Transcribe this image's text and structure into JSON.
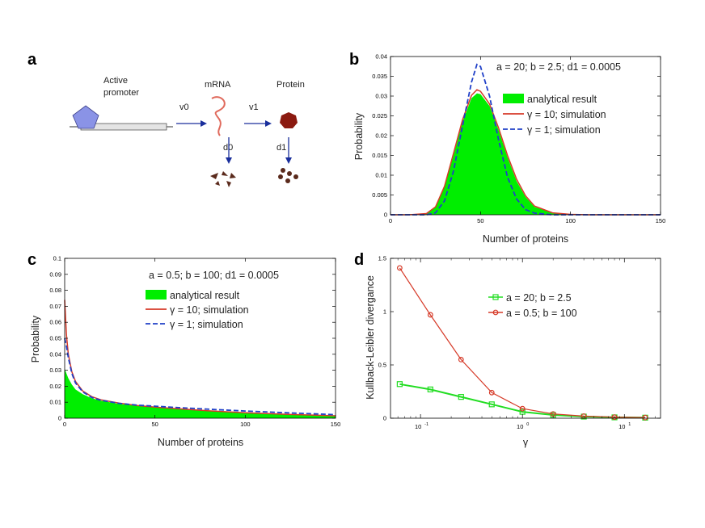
{
  "panel_labels": {
    "a": "a",
    "b": "b",
    "c": "c",
    "d": "d"
  },
  "schematic": {
    "promoter_label_line1": "Active",
    "promoter_label_line2": "promoter",
    "mrna_label": "mRNA",
    "protein_label": "Protein",
    "v0": "v0",
    "v1": "v1",
    "d0": "d0",
    "d1": "d1",
    "colors": {
      "promoter": "#8a93e6",
      "mrna": "#e06a5c",
      "protein": "#8b1a10",
      "arrow": "#1a2f9c",
      "debris": "#5a2a1c"
    }
  },
  "chart_data": [
    {
      "id": "b",
      "type": "area",
      "annotation": "a = 20; b = 2.5;  d1 = 0.0005",
      "xlabel": "Number of proteins",
      "ylabel": "Probability",
      "xlim": [
        0,
        150
      ],
      "ylim": [
        0,
        0.04
      ],
      "xticks": [
        0,
        50,
        100,
        150
      ],
      "yticks": [
        "0",
        "0.005",
        "0.01",
        "0.015",
        "0.02",
        "0.025",
        "0.03",
        "0.035",
        "0.04"
      ],
      "x": [
        0,
        10,
        20,
        25,
        30,
        35,
        40,
        45,
        48,
        50,
        55,
        60,
        65,
        70,
        75,
        80,
        90,
        100,
        110,
        120,
        150
      ],
      "series": [
        {
          "name": "analytical result",
          "style": "fill",
          "color": "#00ee00",
          "values": [
            0,
            0,
            0.0003,
            0.002,
            0.007,
            0.015,
            0.0235,
            0.0295,
            0.0307,
            0.0305,
            0.0275,
            0.0215,
            0.0145,
            0.0085,
            0.0045,
            0.002,
            0.0005,
            0.0001,
            0,
            0,
            0
          ]
        },
        {
          "name": "γ = 10; simulation",
          "style": "solid",
          "color": "#d63a28",
          "values": [
            0,
            0,
            0.0003,
            0.002,
            0.0072,
            0.0155,
            0.024,
            0.0302,
            0.0316,
            0.0312,
            0.028,
            0.022,
            0.015,
            0.009,
            0.0048,
            0.0022,
            0.0005,
            0.0001,
            0,
            0,
            0
          ]
        },
        {
          "name": "γ = 1; simulation",
          "style": "dashed",
          "color": "#2040c8",
          "values": [
            0,
            0,
            0,
            0.0005,
            0.0035,
            0.011,
            0.0225,
            0.0335,
            0.038,
            0.0375,
            0.03,
            0.019,
            0.0095,
            0.004,
            0.0013,
            0.0004,
            0,
            0,
            0,
            0,
            0
          ]
        }
      ]
    },
    {
      "id": "c",
      "type": "area",
      "annotation": "a = 0.5; b = 100;  d1 = 0.0005",
      "xlabel": "Number of proteins",
      "ylabel": "Probability",
      "xlim": [
        0,
        150
      ],
      "ylim": [
        0,
        0.1
      ],
      "xticks": [
        0,
        50,
        100,
        150
      ],
      "yticks": [
        "0",
        "0.01",
        "0.02",
        "0.03",
        "0.04",
        "0.05",
        "0.06",
        "0.07",
        "0.08",
        "0.09",
        "0.1"
      ],
      "x": [
        0,
        1,
        2,
        4,
        6,
        10,
        15,
        20,
        30,
        40,
        50,
        60,
        80,
        100,
        125,
        150
      ],
      "series": [
        {
          "name": "analytical result",
          "style": "fill",
          "color": "#00ee00",
          "values": [
            0.031,
            0.028,
            0.025,
            0.021,
            0.018,
            0.015,
            0.0125,
            0.011,
            0.009,
            0.0078,
            0.0068,
            0.006,
            0.0045,
            0.0033,
            0.0022,
            0.0014
          ]
        },
        {
          "name": "γ = 10; simulation",
          "style": "solid",
          "color": "#d63a28",
          "values": [
            0.074,
            0.052,
            0.04,
            0.029,
            0.023,
            0.017,
            0.0135,
            0.0115,
            0.0095,
            0.008,
            0.0069,
            0.0061,
            0.0046,
            0.0034,
            0.0023,
            0.0015
          ]
        },
        {
          "name": "γ = 1; simulation",
          "style": "dashed",
          "color": "#2040c8",
          "values": [
            0.05,
            0.045,
            0.038,
            0.028,
            0.022,
            0.0165,
            0.013,
            0.0112,
            0.0093,
            0.0082,
            0.0075,
            0.0068,
            0.0056,
            0.0045,
            0.0033,
            0.0022
          ]
        }
      ]
    },
    {
      "id": "d",
      "type": "line",
      "xscale": "log2",
      "xlabel": "γ",
      "ylabel": "Kullback-Leibler divergance",
      "xlim_log2": [
        -4.3,
        4.5
      ],
      "ylim": [
        0,
        1.5
      ],
      "yticks": [
        "0",
        "0.5",
        "1",
        "1.5"
      ],
      "xtick_labels": [
        "10",
        "10",
        "10"
      ],
      "xtick_exponents": [
        "-1",
        "0",
        "1"
      ],
      "x": [
        0.0625,
        0.125,
        0.25,
        0.5,
        1,
        2,
        4,
        8,
        16
      ],
      "series": [
        {
          "name": "a = 20; b = 2.5",
          "marker": "square",
          "color": "#22dd22",
          "values": [
            0.32,
            0.27,
            0.2,
            0.13,
            0.06,
            0.03,
            0.015,
            0.008,
            0.005
          ]
        },
        {
          "name": "a = 0.5; b = 100",
          "marker": "circle",
          "color": "#d63a28",
          "values": [
            1.41,
            0.97,
            0.55,
            0.24,
            0.09,
            0.04,
            0.02,
            0.01,
            0.006
          ]
        }
      ]
    }
  ]
}
